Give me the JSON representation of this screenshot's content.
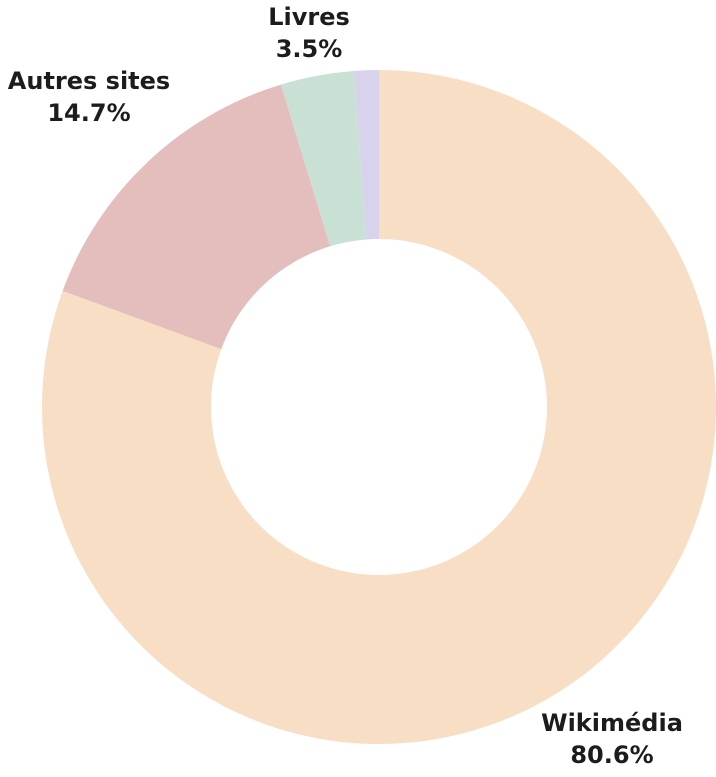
{
  "chart_data": {
    "type": "pie",
    "variant": "donut",
    "title": "",
    "slices": [
      {
        "label": "Wikimédia",
        "value": 80.6,
        "value_label": "80.6%",
        "color": "#f8dec4"
      },
      {
        "label": "Autres sites",
        "value": 14.7,
        "value_label": "14.7%",
        "color": "#e3bebd"
      },
      {
        "label": "Livres",
        "value": 3.5,
        "value_label": "3.5%",
        "color": "#c9e0d5"
      },
      {
        "label": "",
        "value": 1.2,
        "value_label": "",
        "color": "#d8d2ec"
      }
    ],
    "legend": "none"
  }
}
